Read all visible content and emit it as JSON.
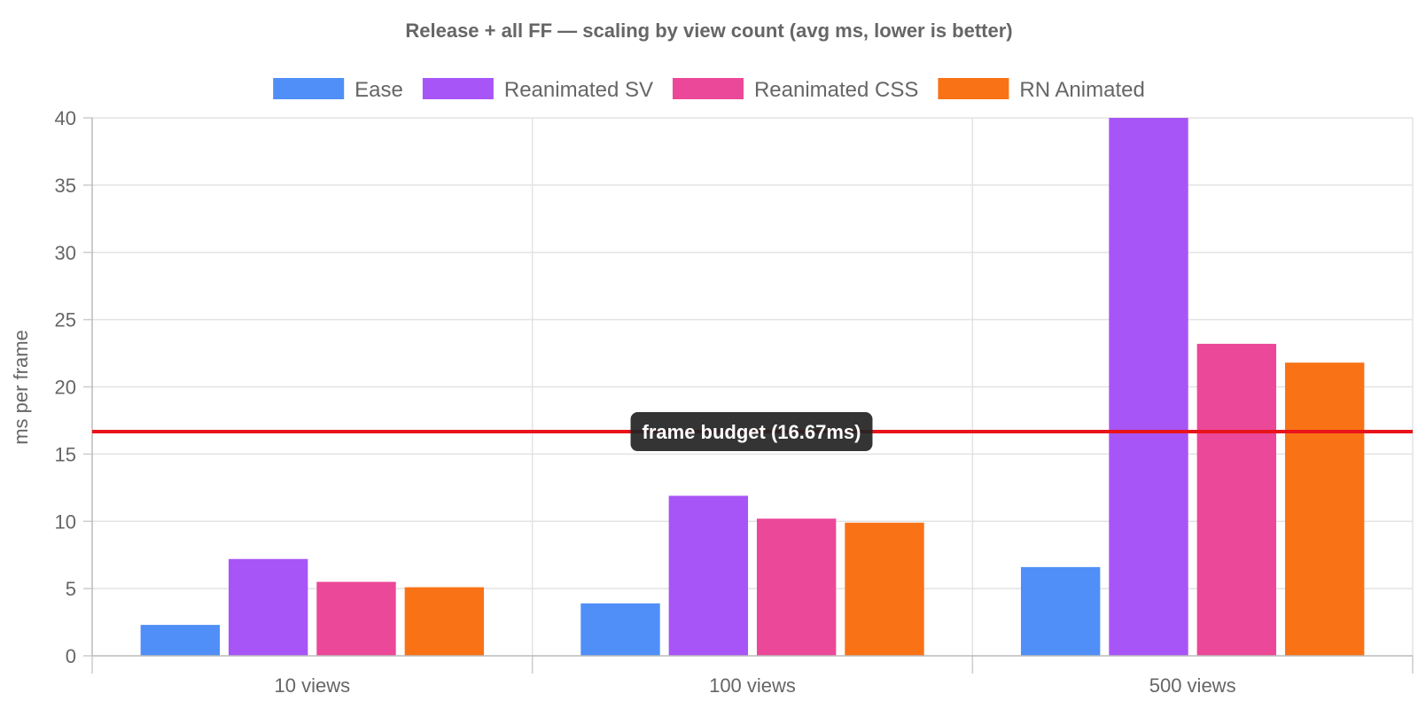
{
  "chart_data": {
    "type": "bar",
    "title": "Release + all FF — scaling by view count (avg ms, lower is better)",
    "ylabel": "ms per frame",
    "xlabel": "",
    "categories": [
      "10 views",
      "100 views",
      "500 views"
    ],
    "ylim": [
      0,
      40
    ],
    "yticks": [
      0,
      5,
      10,
      15,
      20,
      25,
      30,
      35,
      40
    ],
    "grid": true,
    "legend_position": "top",
    "series": [
      {
        "name": "Ease",
        "color": "#4f8ff7",
        "values": [
          2.3,
          3.9,
          6.6
        ]
      },
      {
        "name": "Reanimated SV",
        "color": "#a855f7",
        "values": [
          7.2,
          11.9,
          40
        ]
      },
      {
        "name": "Reanimated CSS",
        "color": "#ec4899",
        "values": [
          5.5,
          10.2,
          23.2
        ]
      },
      {
        "name": "RN Animated",
        "color": "#f97316",
        "values": [
          5.1,
          9.9,
          21.8
        ]
      }
    ],
    "reference_line": {
      "value": 16.67,
      "label": "frame budget (16.67ms)",
      "color": "#e8141b"
    }
  }
}
